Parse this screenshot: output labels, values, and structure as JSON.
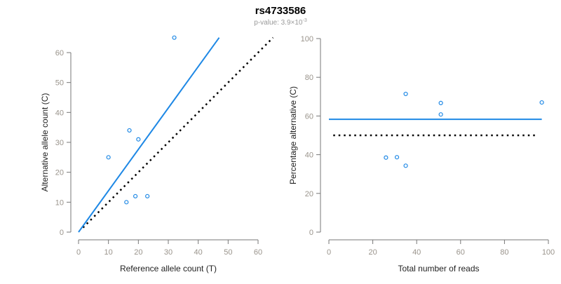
{
  "header": {
    "title": "rs4733586",
    "pvalue_prefix": "p-value: 3.9×10",
    "pvalue_exponent": "-3"
  },
  "colors": {
    "points": "#1e88e5",
    "fit": "#1e88e5",
    "reference": "#000000",
    "axis": "#777777",
    "tick_text": "#9a948c"
  },
  "chart_data": [
    {
      "type": "scatter",
      "xlabel": "Reference allele count (T)",
      "ylabel": "Alternative allele count (C)",
      "xlim": [
        0,
        60
      ],
      "ylim": [
        0,
        60
      ],
      "xticks": [
        0,
        10,
        20,
        30,
        40,
        50,
        60
      ],
      "yticks": [
        0,
        10,
        20,
        30,
        40,
        50,
        60
      ],
      "points": [
        [
          10,
          25
        ],
        [
          17,
          34
        ],
        [
          20,
          31
        ],
        [
          16,
          10
        ],
        [
          19,
          12
        ],
        [
          23,
          12
        ],
        [
          32,
          65
        ]
      ],
      "fit_line": [
        [
          0,
          0
        ],
        [
          47,
          65
        ]
      ],
      "reference_line": [
        [
          1.5,
          1.5
        ],
        [
          65,
          65
        ]
      ]
    },
    {
      "type": "scatter",
      "xlabel": "Total number of reads",
      "ylabel": "Percentage alternative (C)",
      "xlim": [
        0,
        100
      ],
      "ylim": [
        0,
        100
      ],
      "xticks": [
        0,
        20,
        40,
        60,
        80,
        100
      ],
      "yticks": [
        0,
        20,
        40,
        60,
        80,
        100
      ],
      "points": [
        [
          35,
          71.4
        ],
        [
          51,
          66.7
        ],
        [
          51,
          60.8
        ],
        [
          26,
          38.5
        ],
        [
          31,
          38.7
        ],
        [
          35,
          34.3
        ],
        [
          97,
          67.0
        ]
      ],
      "fit_line": [
        [
          0,
          58.3
        ],
        [
          97,
          58.3
        ]
      ],
      "reference_line": [
        [
          2,
          50
        ],
        [
          95,
          50
        ]
      ]
    }
  ]
}
